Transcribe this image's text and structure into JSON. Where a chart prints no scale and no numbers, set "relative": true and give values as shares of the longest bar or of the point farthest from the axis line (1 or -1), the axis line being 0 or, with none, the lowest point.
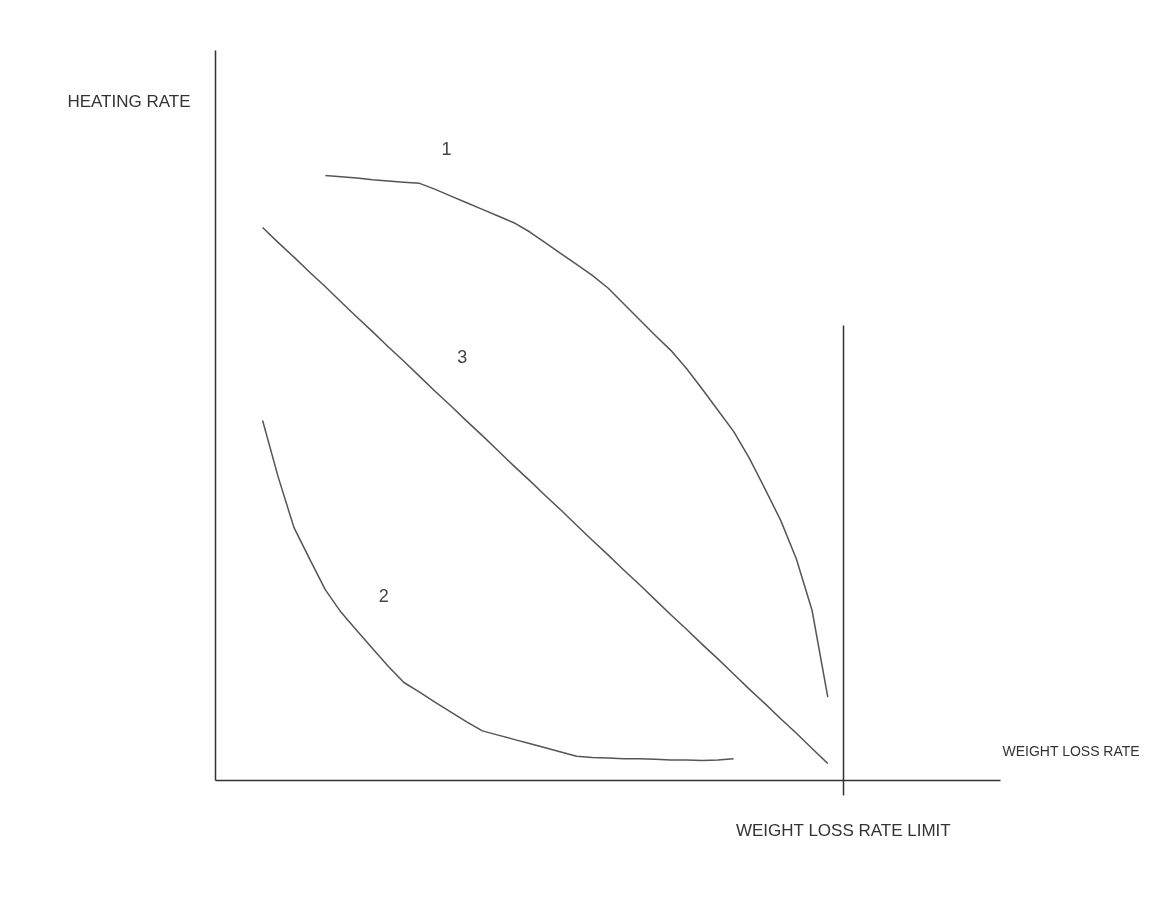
{
  "chart_data": {
    "type": "line",
    "relative": true,
    "xlabel": "WEIGHT LOSS RATE",
    "ylabel": "HEATING RATE",
    "legend": false,
    "marker": "none",
    "line_style": "solid",
    "categories": [
      null,
      null,
      null,
      null,
      null,
      null,
      null,
      null,
      null,
      null,
      null,
      null,
      null,
      null,
      null,
      null,
      null,
      null,
      null,
      null,
      null,
      null,
      null,
      null,
      null,
      null,
      null,
      null,
      null,
      null,
      null,
      null,
      null,
      null,
      null,
      null,
      null,
      null,
      null,
      null,
      null,
      null,
      null,
      null,
      null,
      null,
      null,
      null,
      null,
      null,
      null
    ],
    "series": [
      {
        "name": "1",
        "color": "#555555",
        "values": [
          null,
          null,
          null,
          null,
          null,
          null,
          null,
          1.0,
          0.998,
          0.996,
          0.993,
          0.991,
          0.989,
          0.987,
          0.977,
          0.966,
          0.955,
          0.944,
          0.933,
          0.922,
          0.907,
          0.889,
          0.871,
          0.853,
          0.835,
          0.814,
          0.788,
          0.762,
          0.736,
          0.711,
          0.681,
          0.647,
          0.612,
          0.577,
          0.533,
          0.482,
          0.43,
          0.366,
          0.281,
          0.138,
          null,
          null,
          null,
          null,
          null,
          null,
          null,
          null,
          null,
          null,
          null
        ]
      },
      {
        "name": "2",
        "color": "#555555",
        "values": [
          null,
          null,
          null,
          0.595,
          0.501,
          0.418,
          0.366,
          0.315,
          0.278,
          0.248,
          0.218,
          0.189,
          0.162,
          0.146,
          0.129,
          0.113,
          0.097,
          0.082,
          0.075,
          0.068,
          0.061,
          0.054,
          0.047,
          0.04,
          0.038,
          0.037,
          0.036,
          0.036,
          0.035,
          0.034,
          0.034,
          0.033,
          0.034,
          0.036,
          null,
          null,
          null,
          null,
          null,
          null,
          null,
          null,
          null,
          null,
          null,
          null,
          null,
          null,
          null,
          null,
          null
        ]
      },
      {
        "name": "3",
        "color": "#555555",
        "values": [
          null,
          null,
          null,
          0.914,
          0.889,
          0.865,
          0.84,
          0.816,
          0.791,
          0.766,
          0.742,
          0.717,
          0.693,
          0.668,
          0.643,
          0.619,
          0.594,
          0.57,
          0.545,
          0.52,
          0.496,
          0.471,
          0.447,
          0.422,
          0.397,
          0.373,
          0.348,
          0.324,
          0.299,
          0.274,
          0.25,
          0.225,
          0.201,
          0.176,
          0.151,
          0.127,
          0.102,
          0.078,
          0.053,
          0.028,
          null,
          null,
          null,
          null,
          null,
          null,
          null,
          null,
          null,
          null,
          null
        ]
      }
    ],
    "annotations": [
      "WEIGHT LOSS RATE LIMIT"
    ]
  }
}
